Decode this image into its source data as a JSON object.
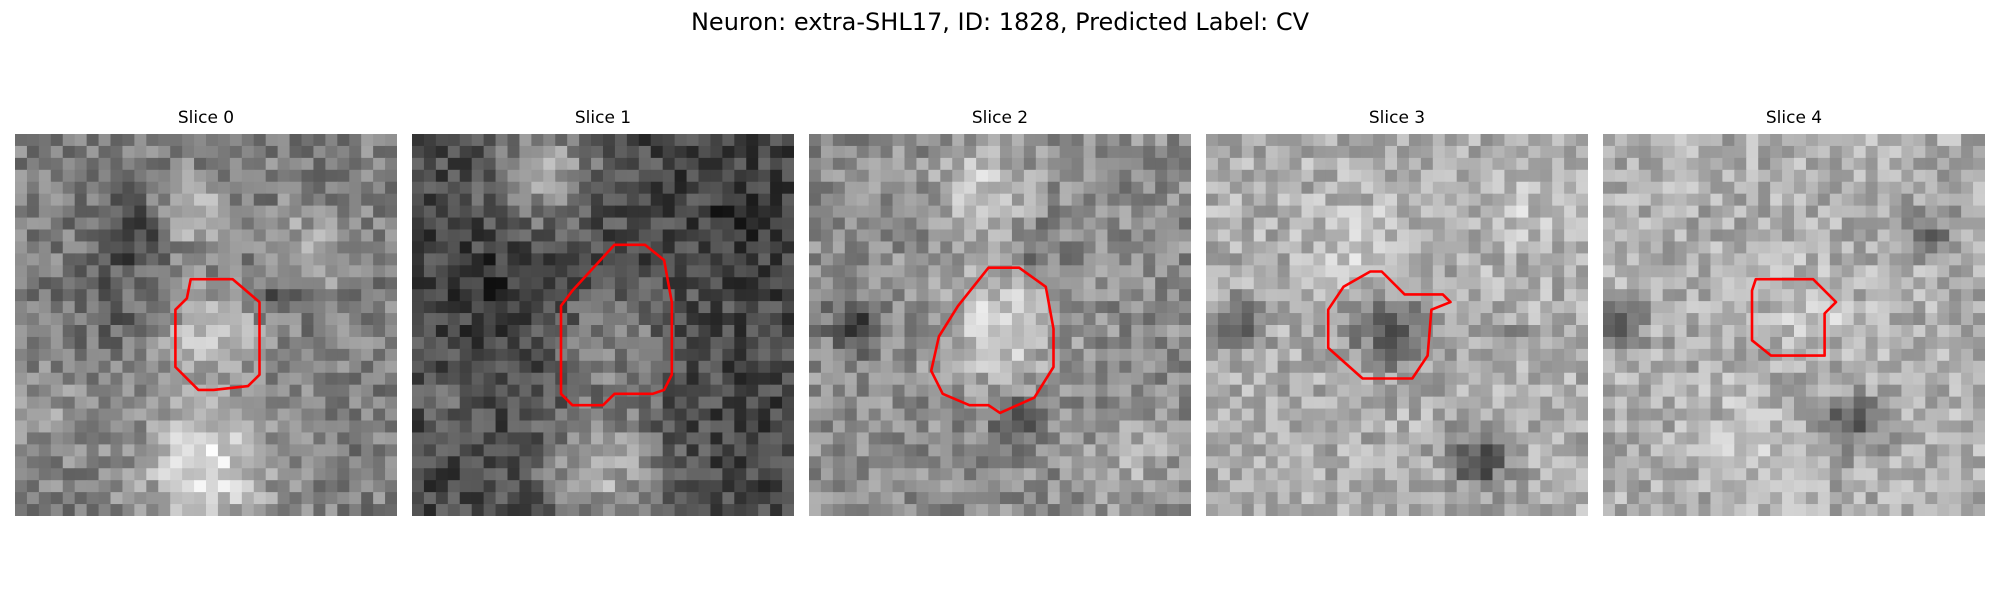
{
  "figure": {
    "title": "Neuron: extra-SHL17, ID: 1828, Predicted Label: CV",
    "contour_color": "#ff0000",
    "colormap": "gray"
  },
  "slices": [
    {
      "label": "Slice 0"
    },
    {
      "label": "Slice 1"
    },
    {
      "label": "Slice 2"
    },
    {
      "label": "Slice 3"
    },
    {
      "label": "Slice 4"
    }
  ]
}
